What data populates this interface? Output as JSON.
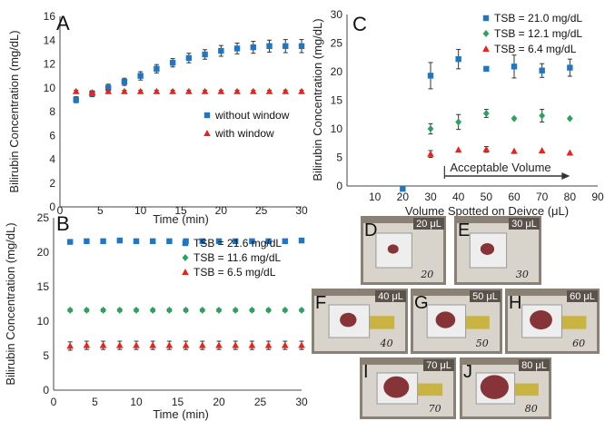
{
  "chart_data": [
    {
      "panel": "A",
      "type": "scatter",
      "xlabel": "Time (min)",
      "ylabel": "Bilirubin Concentration (mg/dL)",
      "xlim": [
        0,
        30
      ],
      "ylim": [
        0,
        16
      ],
      "xticks": [
        0,
        5,
        10,
        15,
        20,
        25,
        30
      ],
      "yticks": [
        0,
        2,
        4,
        6,
        8,
        10,
        12,
        14,
        16
      ],
      "legend_position": "center-right",
      "series": [
        {
          "name": "without window",
          "color": "#1f77c4",
          "marker": "square",
          "x": [
            2,
            4,
            6,
            8,
            10,
            12,
            14,
            16,
            18,
            20,
            22,
            24,
            26,
            28,
            30
          ],
          "y": [
            9.0,
            9.5,
            10.0,
            10.5,
            11.0,
            11.6,
            12.1,
            12.5,
            12.8,
            13.1,
            13.3,
            13.4,
            13.5,
            13.5,
            13.5
          ],
          "err": [
            0.25,
            0.25,
            0.3,
            0.3,
            0.35,
            0.35,
            0.35,
            0.4,
            0.4,
            0.45,
            0.45,
            0.5,
            0.5,
            0.55,
            0.55
          ]
        },
        {
          "name": "with window",
          "color": "#e8231e",
          "marker": "triangle",
          "x": [
            2,
            4,
            6,
            8,
            10,
            12,
            14,
            16,
            18,
            20,
            22,
            24,
            26,
            28,
            30
          ],
          "y": [
            9.7,
            9.6,
            9.7,
            9.7,
            9.7,
            9.7,
            9.7,
            9.7,
            9.7,
            9.7,
            9.7,
            9.7,
            9.7,
            9.7,
            9.7
          ],
          "err": [
            0.1,
            0.1,
            0.1,
            0.1,
            0.1,
            0.1,
            0.1,
            0.1,
            0.1,
            0.1,
            0.1,
            0.1,
            0.1,
            0.1,
            0.1
          ]
        }
      ]
    },
    {
      "panel": "B",
      "type": "scatter",
      "xlabel": "Time (min)",
      "ylabel": "Bilirubin Concentration (mg/dL)",
      "xlim": [
        0,
        30
      ],
      "ylim": [
        0,
        25
      ],
      "xticks": [
        0,
        5,
        10,
        15,
        20,
        25,
        30
      ],
      "yticks": [
        0,
        5,
        10,
        15,
        20,
        25
      ],
      "legend_position": "right",
      "series": [
        {
          "name": "TSB = 21.6 mg/dL",
          "color": "#1f77c4",
          "marker": "square",
          "x": [
            2,
            4,
            6,
            8,
            10,
            12,
            14,
            16,
            18,
            20,
            22,
            24,
            26,
            28,
            30
          ],
          "y": [
            21.5,
            21.6,
            21.6,
            21.7,
            21.6,
            21.6,
            21.6,
            21.6,
            21.6,
            21.6,
            21.6,
            21.6,
            21.6,
            21.6,
            21.7
          ],
          "err": [
            0.2,
            0.2,
            0.2,
            0.2,
            0.2,
            0.2,
            0.2,
            0.2,
            0.2,
            0.2,
            0.2,
            0.2,
            0.2,
            0.2,
            0.2
          ]
        },
        {
          "name": "TSB =  11.6 mg/dL",
          "color": "#2ca25f",
          "marker": "diamond",
          "x": [
            2,
            4,
            6,
            8,
            10,
            12,
            14,
            16,
            18,
            20,
            22,
            24,
            26,
            28,
            30
          ],
          "y": [
            11.6,
            11.6,
            11.6,
            11.6,
            11.6,
            11.6,
            11.6,
            11.6,
            11.6,
            11.6,
            11.6,
            11.6,
            11.6,
            11.6,
            11.6
          ],
          "err": [
            0.2,
            0.2,
            0.2,
            0.2,
            0.2,
            0.2,
            0.2,
            0.2,
            0.2,
            0.2,
            0.2,
            0.2,
            0.2,
            0.2,
            0.2
          ]
        },
        {
          "name": "TSB = 6.5 mg/dL",
          "color": "#e8231e",
          "marker": "triangle",
          "x": [
            2,
            4,
            6,
            8,
            10,
            12,
            14,
            16,
            18,
            20,
            22,
            24,
            26,
            28,
            30
          ],
          "y": [
            6.4,
            6.5,
            6.5,
            6.5,
            6.5,
            6.5,
            6.5,
            6.5,
            6.5,
            6.5,
            6.5,
            6.5,
            6.5,
            6.5,
            6.5
          ],
          "err": [
            0.6,
            0.6,
            0.6,
            0.6,
            0.6,
            0.6,
            0.6,
            0.6,
            0.6,
            0.6,
            0.6,
            0.6,
            0.6,
            0.6,
            0.6
          ]
        }
      ]
    },
    {
      "panel": "C",
      "type": "scatter",
      "xlabel": "Volume Spotted on Deivce (μL)",
      "ylabel": "Bilirubin Concentration (mg/dL)",
      "xlim": [
        0,
        90
      ],
      "ylim": [
        0,
        30
      ],
      "xticks": [
        10,
        20,
        30,
        40,
        50,
        60,
        70,
        80,
        90
      ],
      "yticks": [
        0,
        5,
        10,
        15,
        20,
        25,
        30
      ],
      "legend_position": "top",
      "annotation": "Acceptable Volume",
      "annotation_range": [
        35,
        80
      ],
      "series": [
        {
          "name": "TSB  =  21.0 mg/dL",
          "color": "#1f77c4",
          "marker": "square",
          "x": [
            20,
            30,
            40,
            50,
            60,
            70,
            80
          ],
          "y": [
            -0.5,
            19.3,
            22.2,
            20.5,
            20.9,
            20.2,
            20.7
          ],
          "err": [
            0,
            2.3,
            1.7,
            0,
            2.0,
            1.2,
            1.5
          ]
        },
        {
          "name": "TSB  =  12.1 mg/dL",
          "color": "#2ca25f",
          "marker": "diamond",
          "x": [
            30,
            40,
            50,
            60,
            70,
            80
          ],
          "y": [
            10.0,
            11.2,
            12.7,
            11.8,
            12.3,
            11.8
          ],
          "err": [
            0.9,
            1.3,
            0.7,
            0,
            1.1,
            0
          ]
        },
        {
          "name": "TSB  =  6.4 mg/dL",
          "color": "#e8231e",
          "marker": "triangle",
          "x": [
            30,
            40,
            50,
            60,
            70,
            80
          ],
          "y": [
            5.6,
            6.3,
            6.4,
            6.1,
            6.2,
            5.8
          ],
          "err": [
            0.6,
            0,
            0.5,
            0,
            0,
            0
          ]
        }
      ]
    }
  ],
  "photos": [
    {
      "letter": "D",
      "volume_label": "20 μL",
      "handwritten": "20"
    },
    {
      "letter": "E",
      "volume_label": "30 μL",
      "handwritten": "30"
    },
    {
      "letter": "F",
      "volume_label": "40 μL",
      "handwritten": "40"
    },
    {
      "letter": "G",
      "volume_label": "50 μL",
      "handwritten": "50"
    },
    {
      "letter": "H",
      "volume_label": "60 μL",
      "handwritten": "60"
    },
    {
      "letter": "I",
      "volume_label": "70 μL",
      "handwritten": "70"
    },
    {
      "letter": "J",
      "volume_label": "80 μL",
      "handwritten": "80"
    }
  ]
}
